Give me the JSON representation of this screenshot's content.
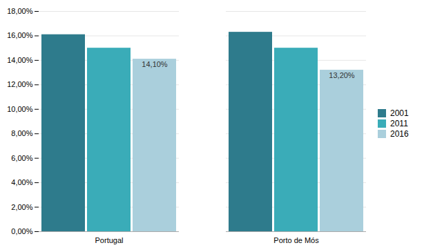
{
  "chart_data": {
    "type": "bar",
    "categories": [
      "Portugal",
      "Porto de Mós"
    ],
    "series": [
      {
        "name": "2001",
        "color": "#2E7B8C",
        "values": [
          0.161,
          0.163
        ]
      },
      {
        "name": "2011",
        "color": "#3AACB8",
        "values": [
          0.15,
          0.15
        ]
      },
      {
        "name": "2016",
        "color": "#AACFDC",
        "values": [
          0.141,
          0.132
        ],
        "data_labels": true,
        "value_labels": [
          "14,10%",
          "13,20%"
        ]
      }
    ],
    "ylim": [
      0,
      0.18
    ],
    "yticks": [
      {
        "value": 0.0,
        "label": "0,00%"
      },
      {
        "value": 0.02,
        "label": "2,00%"
      },
      {
        "value": 0.04,
        "label": "4,00%"
      },
      {
        "value": 0.06,
        "label": "6,00%"
      },
      {
        "value": 0.08,
        "label": "8,00%"
      },
      {
        "value": 0.1,
        "label": "10,00%"
      },
      {
        "value": 0.12,
        "label": "12,00%"
      },
      {
        "value": 0.14,
        "label": "14,00%"
      },
      {
        "value": 0.16,
        "label": "16,00%"
      },
      {
        "value": 0.18,
        "label": "18,00%"
      }
    ],
    "grid": true,
    "legend": "right"
  }
}
